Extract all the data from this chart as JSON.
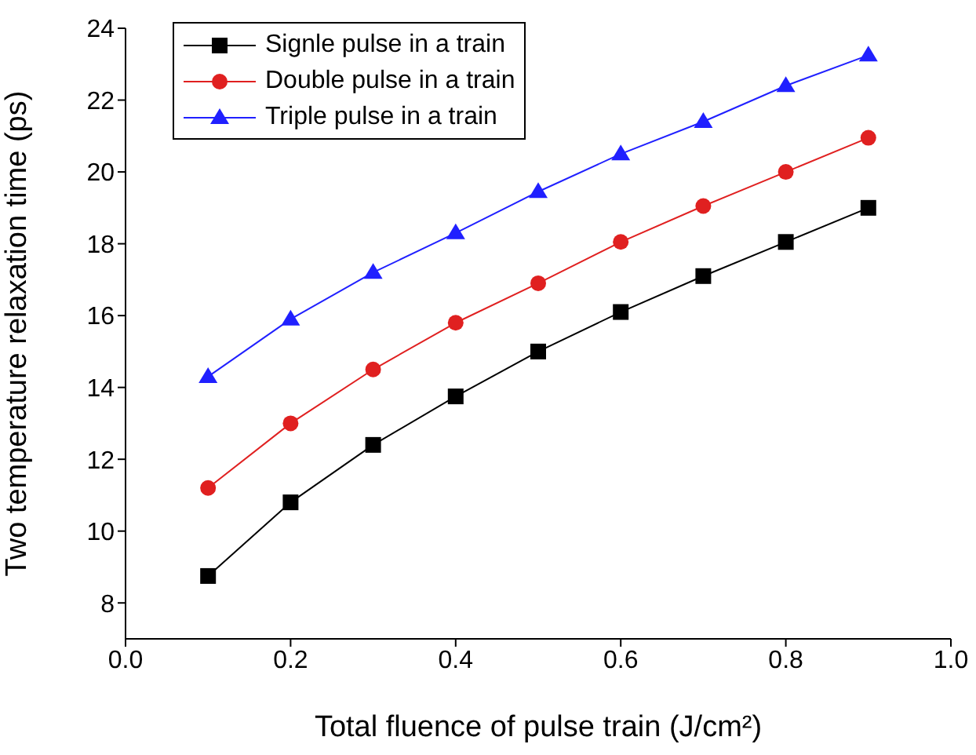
{
  "chart_data": {
    "type": "line",
    "xlabel": "Total fluence of pulse train (J/cm²)",
    "ylabel": "Two temperature relaxation time (ps)",
    "x": [
      0.1,
      0.2,
      0.3,
      0.4,
      0.5,
      0.6,
      0.7,
      0.8,
      0.9
    ],
    "series": [
      {
        "name": "Signle pulse in a train",
        "color": "#000000",
        "marker": "square",
        "values": [
          8.75,
          10.8,
          12.4,
          13.75,
          15.0,
          16.1,
          17.1,
          18.05,
          19.0
        ]
      },
      {
        "name": "Double pulse in a train",
        "color": "#e02020",
        "marker": "circle",
        "values": [
          11.2,
          13.0,
          14.5,
          15.8,
          16.9,
          18.05,
          19.05,
          20.0,
          20.95
        ]
      },
      {
        "name": "Triple pulse in a train",
        "color": "#2020ff",
        "marker": "triangle",
        "values": [
          14.3,
          15.9,
          17.2,
          18.3,
          19.45,
          20.5,
          21.4,
          22.4,
          23.25
        ]
      }
    ],
    "xlim": [
      0,
      1
    ],
    "xticks": [
      {
        "value": 0,
        "label": "0.0"
      },
      0.2,
      0.4,
      0.6,
      0.8,
      {
        "value": 1,
        "label": "1.0"
      }
    ],
    "ylim": [
      7,
      24
    ],
    "yticks": [
      8,
      10,
      12,
      14,
      16,
      18,
      20,
      22,
      24
    ],
    "grid": false,
    "legend": "top left",
    "line_style": "solid"
  }
}
